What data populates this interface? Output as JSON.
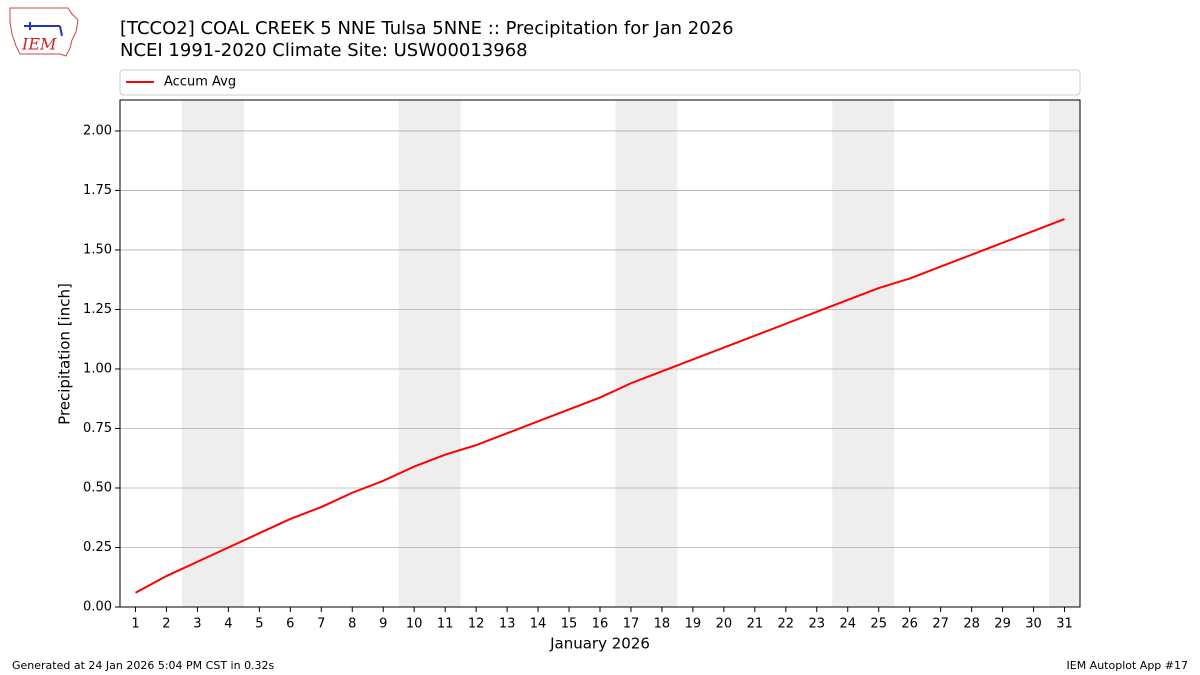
{
  "logo": "IEM",
  "footer": {
    "left": "Generated at 24 Jan 2026 5:04 PM CST in 0.32s",
    "right": "IEM Autoplot App #17"
  },
  "chart_data": {
    "type": "line",
    "title": "[TCCO2] COAL CREEK 5 NNE Tulsa 5NNE :: Precipitation for Jan 2026",
    "subtitle": "NCEI 1991-2020 Climate Site: USW00013968",
    "x_label": "January 2026",
    "y_label": "Precipitation [inch]",
    "x": [
      1,
      2,
      3,
      4,
      5,
      6,
      7,
      8,
      9,
      10,
      11,
      12,
      13,
      14,
      15,
      16,
      17,
      18,
      19,
      20,
      21,
      22,
      23,
      24,
      25,
      26,
      27,
      28,
      29,
      30,
      31
    ],
    "series": [
      {
        "name": "Accum Avg",
        "color": "#ff0000",
        "values": [
          0.06,
          0.13,
          0.19,
          0.25,
          0.31,
          0.37,
          0.42,
          0.48,
          0.53,
          0.59,
          0.64,
          0.68,
          0.73,
          0.78,
          0.83,
          0.88,
          0.94,
          0.99,
          1.04,
          1.09,
          1.14,
          1.19,
          1.24,
          1.29,
          1.34,
          1.38,
          1.43,
          1.48,
          1.53,
          1.58,
          1.63
        ]
      }
    ],
    "weekend_spans": [
      [
        2.5,
        4.5
      ],
      [
        9.5,
        11.5
      ],
      [
        16.5,
        18.5
      ],
      [
        23.5,
        25.5
      ],
      [
        30.5,
        31.5
      ]
    ],
    "span_color": "#eeeeee",
    "xlim": [
      0.5,
      31.5
    ],
    "ylim": [
      0,
      2.13
    ],
    "xticks": [
      1,
      2,
      3,
      4,
      5,
      6,
      7,
      8,
      9,
      10,
      11,
      12,
      13,
      14,
      15,
      16,
      17,
      18,
      19,
      20,
      21,
      22,
      23,
      24,
      25,
      26,
      27,
      28,
      29,
      30,
      31
    ],
    "yticks": [
      {
        "value": 0,
        "label": "0.00"
      },
      {
        "value": 0.25,
        "label": "0.25"
      },
      {
        "value": 0.5,
        "label": "0.50"
      },
      {
        "value": 0.75,
        "label": "0.75"
      },
      {
        "value": 1,
        "label": "1.00"
      },
      {
        "value": 1.25,
        "label": "1.25"
      },
      {
        "value": 1.5,
        "label": "1.50"
      },
      {
        "value": 1.75,
        "label": "1.75"
      },
      {
        "value": 2,
        "label": "2.00"
      }
    ],
    "grid": "y",
    "legend": "top"
  }
}
